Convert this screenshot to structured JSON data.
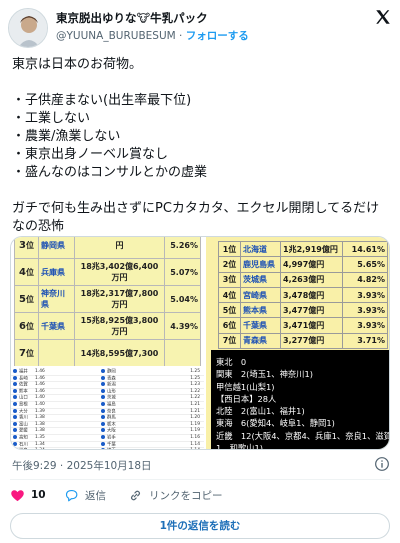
{
  "author": {
    "display_name": "東京脱出ゆりな🐮牛乳パック",
    "handle": "@YUUNA_BURUBESUM",
    "separator": "·",
    "follow_label": "フォローする"
  },
  "tweet_text": "東京は日本のお荷物。\n\n・子供産まない(出生率最下位)\n・工業しない\n・農業/漁業しない\n・東京出身ノーベル賞なし\n・盛んなのはコンサルとかの虚業\n\nガチで何も生み出さずにPCカタカタ、エクセル開閉してるだけなの恐怖",
  "media": {
    "left_table": [
      {
        "rank": "3",
        "rank_suffix": "位",
        "pref": "静岡県",
        "amount": "円",
        "pct": "5.26%"
      },
      {
        "rank": "4",
        "rank_suffix": "位",
        "pref": "兵庫県",
        "amount": "18兆3,402億6,400万円",
        "pct": "5.07%"
      },
      {
        "rank": "5",
        "rank_suffix": "位",
        "pref": "神奈川県",
        "amount": "18兆2,317億7,800万円",
        "pct": "5.04%"
      },
      {
        "rank": "6",
        "rank_suffix": "位",
        "pref": "千葉県",
        "amount": "15兆8,925億3,800万円",
        "pct": "4.39%"
      },
      {
        "rank": "7",
        "rank_suffix": "位",
        "pref": "",
        "amount": "14兆8,595億7,300",
        "pct": ""
      }
    ],
    "small_list": [
      {
        "a": "福井",
        "b": "1.46",
        "c": "静岡",
        "d": "1.25"
      },
      {
        "a": "長崎",
        "b": "1.46",
        "c": "青森",
        "d": "1.25"
      },
      {
        "a": "佐賀",
        "b": "1.46",
        "c": "新潟",
        "d": "1.23"
      },
      {
        "a": "熊本",
        "b": "1.46",
        "c": "山形",
        "d": "1.22"
      },
      {
        "a": "山口",
        "b": "1.40",
        "c": "茨城",
        "d": "1.22"
      },
      {
        "a": "島根",
        "b": "1.40",
        "c": "福島",
        "d": "1.21"
      },
      {
        "a": "大分",
        "b": "1.39",
        "c": "奈良",
        "d": "1.21"
      },
      {
        "a": "香川",
        "b": "1.38",
        "c": "群馬",
        "d": "1.20"
      },
      {
        "a": "富山",
        "b": "1.38",
        "c": "栃木",
        "d": "1.19"
      },
      {
        "a": "愛媛",
        "b": "1.38",
        "c": "大阪",
        "d": "1.19"
      },
      {
        "a": "高知",
        "b": "1.35",
        "c": "岩手",
        "d": "1.16"
      },
      {
        "a": "石川",
        "b": "1.34",
        "c": "千葉",
        "d": "1.14"
      },
      {
        "a": "岐阜",
        "b": "1.34",
        "c": "埼玉",
        "d": "1.14"
      }
    ],
    "right_table": [
      {
        "rank": "1",
        "rank_suffix": "位",
        "pref": "北海道",
        "amount": "1兆2,919億円",
        "pct": "14.61%"
      },
      {
        "rank": "2",
        "rank_suffix": "位",
        "pref": "鹿児島県",
        "amount": "4,997億円",
        "pct": "5.65%"
      },
      {
        "rank": "3",
        "rank_suffix": "位",
        "pref": "茨城県",
        "amount": "4,263億円",
        "pct": "4.82%"
      },
      {
        "rank": "4",
        "rank_suffix": "位",
        "pref": "宮崎県",
        "amount": "3,478億円",
        "pct": "3.93%"
      },
      {
        "rank": "5",
        "rank_suffix": "位",
        "pref": "熊本県",
        "amount": "3,477億円",
        "pct": "3.93%"
      },
      {
        "rank": "6",
        "rank_suffix": "位",
        "pref": "千葉県",
        "amount": "3,471億円",
        "pct": "3.93%"
      },
      {
        "rank": "7",
        "rank_suffix": "位",
        "pref": "青森県",
        "amount": "3,277億円",
        "pct": "3.71%"
      }
    ],
    "regions": [
      "東北　0",
      "関東　2(埼玉1、神奈川1)",
      "甲信越1(山梨1)",
      "【西日本】28人",
      "北陸　2(富山1、福井1)",
      "東海　6(愛知4、岐阜1、静岡1)",
      "近畿　12(大阪4、京都4、兵庫1、奈良1、滋賀",
      "1、和歌山1)"
    ]
  },
  "timestamp": "午後9:29 · 2025年10月18日",
  "actions": {
    "like_count": "10",
    "reply_label": "返信",
    "copy_link_label": "リンクをコピー"
  },
  "read_replies_label": "1件の返信を読む",
  "colors": {
    "accent": "#1d9bf0",
    "like": "#f91880",
    "table_yellow": "#f9f0a8"
  }
}
